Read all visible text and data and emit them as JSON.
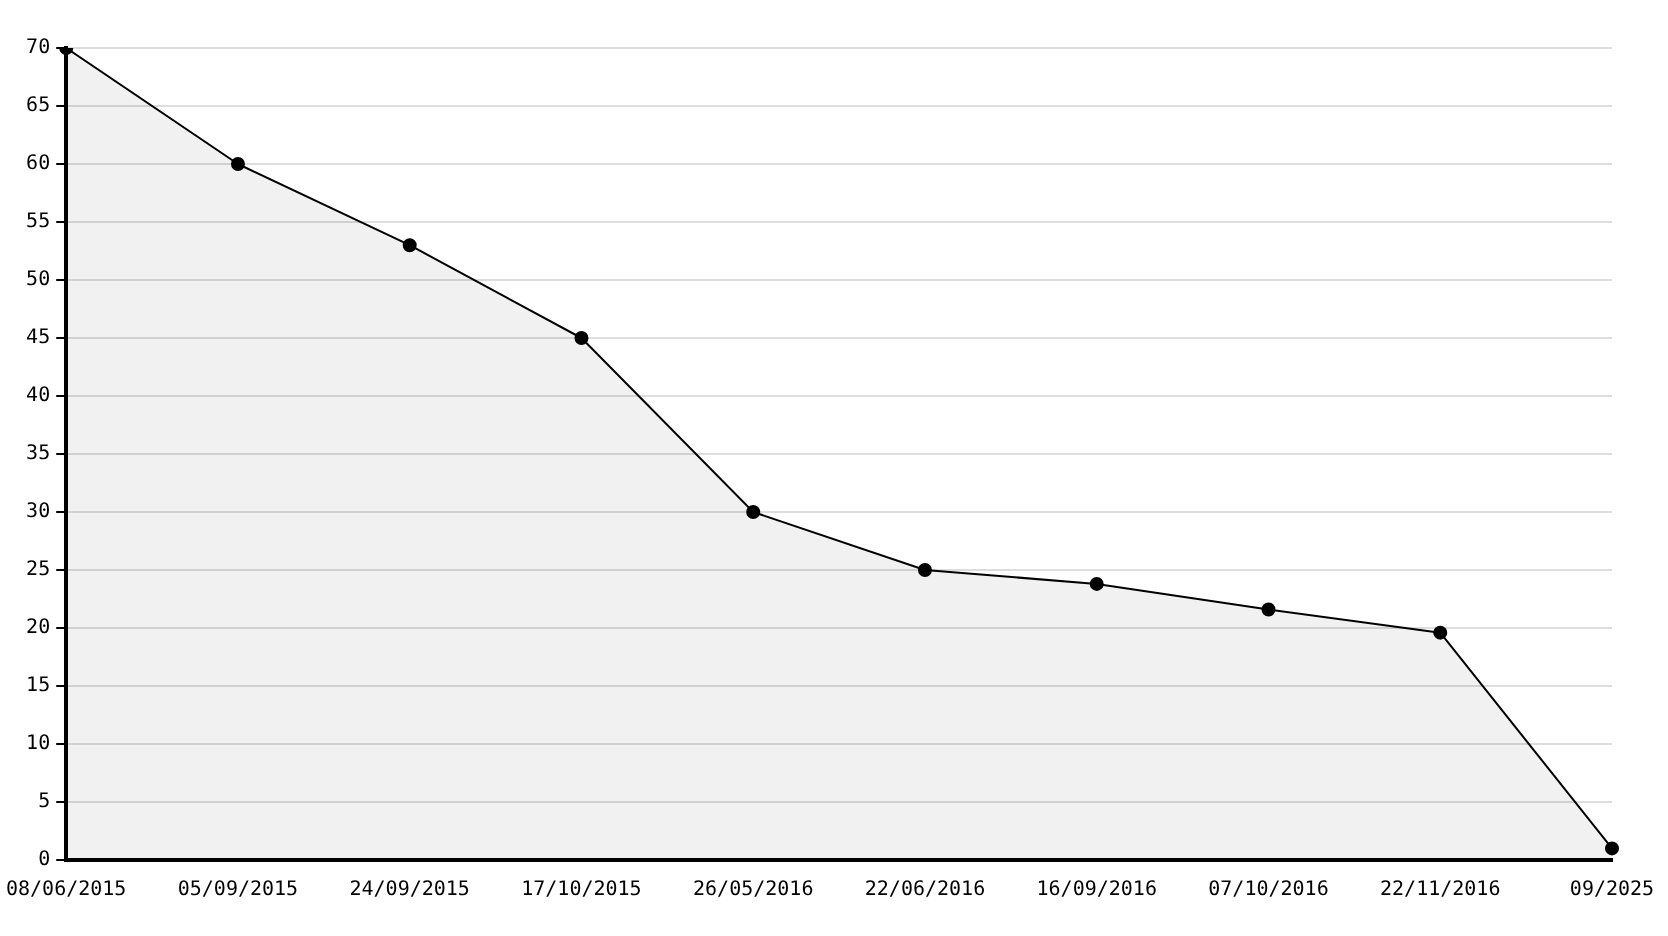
{
  "chart_data": {
    "type": "area",
    "categories": [
      "08/06/2015",
      "05/09/2015",
      "24/09/2015",
      "17/10/2015",
      "26/05/2016",
      "22/06/2016",
      "16/09/2016",
      "07/10/2016",
      "22/11/2016",
      "09/2025"
    ],
    "series": [
      {
        "color": "#000000",
        "values": [
          70,
          60,
          53,
          45,
          30,
          25,
          23.8,
          21.6,
          19.6,
          1
        ]
      }
    ],
    "ylim": [
      0,
      70
    ],
    "yticks": [
      0,
      5,
      10,
      15,
      20,
      25,
      30,
      35,
      40,
      45,
      50,
      55,
      60,
      65,
      70
    ],
    "grid": "y",
    "marker": "circle",
    "line_style": "solid"
  }
}
